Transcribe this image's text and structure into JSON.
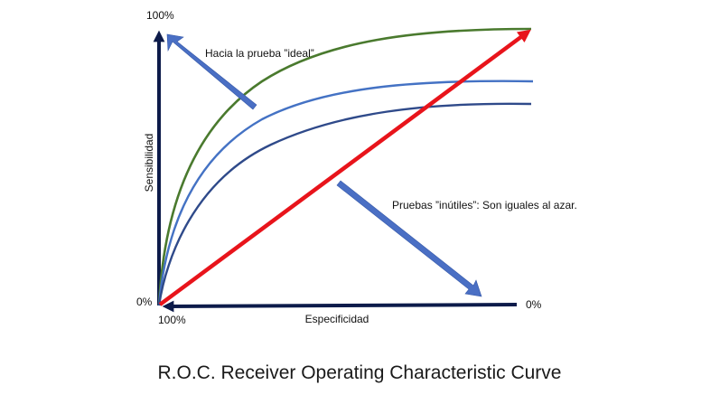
{
  "diagram": {
    "y_axis_top_label": "100%",
    "y_axis_title": "Sensibilidad",
    "origin_label": "0%",
    "x_axis_left_label": "100%",
    "x_axis_title": "Especificidad",
    "x_axis_right_label": "0%",
    "ideal_note": "Hacia la prueba ”ideal”",
    "useless_note": "Pruebas ”inútiles”: Son iguales al azar.",
    "caption": "R.O.C.  Receiver Operating Characteristic Curve",
    "colors": {
      "axes": "#0d1b4a",
      "diagonal": "#e8141b",
      "curve_green": "#4a7a2e",
      "curve_blue_light": "#4472c4",
      "curve_blue_dark": "#2f4a8a",
      "note_arrow": "#4a6fc4"
    }
  }
}
